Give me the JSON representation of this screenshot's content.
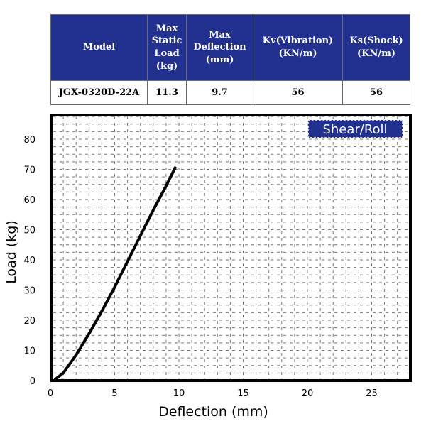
{
  "table": {
    "headers": [
      "Model",
      "Max Static Load (kg)",
      "Max Deflection (mm)",
      "Kv(Vibration) (KN/m)",
      "Ks(Shock) (KN/m)"
    ],
    "rows": [
      [
        "JGX-0320D-22A",
        "11.3",
        "9.7",
        "56",
        "56"
      ]
    ]
  },
  "chart_data": {
    "type": "line",
    "badge": "Shear/Roll",
    "xlabel": "Deflection (mm)",
    "ylabel": "Load (kg)",
    "xlim": [
      0,
      28
    ],
    "ylim": [
      0,
      88
    ],
    "xticks": [
      0,
      5,
      10,
      15,
      20,
      25
    ],
    "yticks": [
      0,
      10,
      20,
      30,
      40,
      50,
      60,
      70,
      80
    ],
    "grid": "dashed",
    "series": [
      {
        "x": [
          0.4,
          1.0,
          2.0,
          3.0,
          4.0,
          5.0,
          6.0,
          7.0,
          8.0,
          9.0,
          9.7
        ],
        "y": [
          0.5,
          2.5,
          8.5,
          15.5,
          23.0,
          31.0,
          39.5,
          48.0,
          56.5,
          64.5,
          70.5
        ],
        "color": "#000000"
      }
    ],
    "colors": {
      "badge_bg": "#22308f",
      "header_bg": "#22308f"
    }
  }
}
